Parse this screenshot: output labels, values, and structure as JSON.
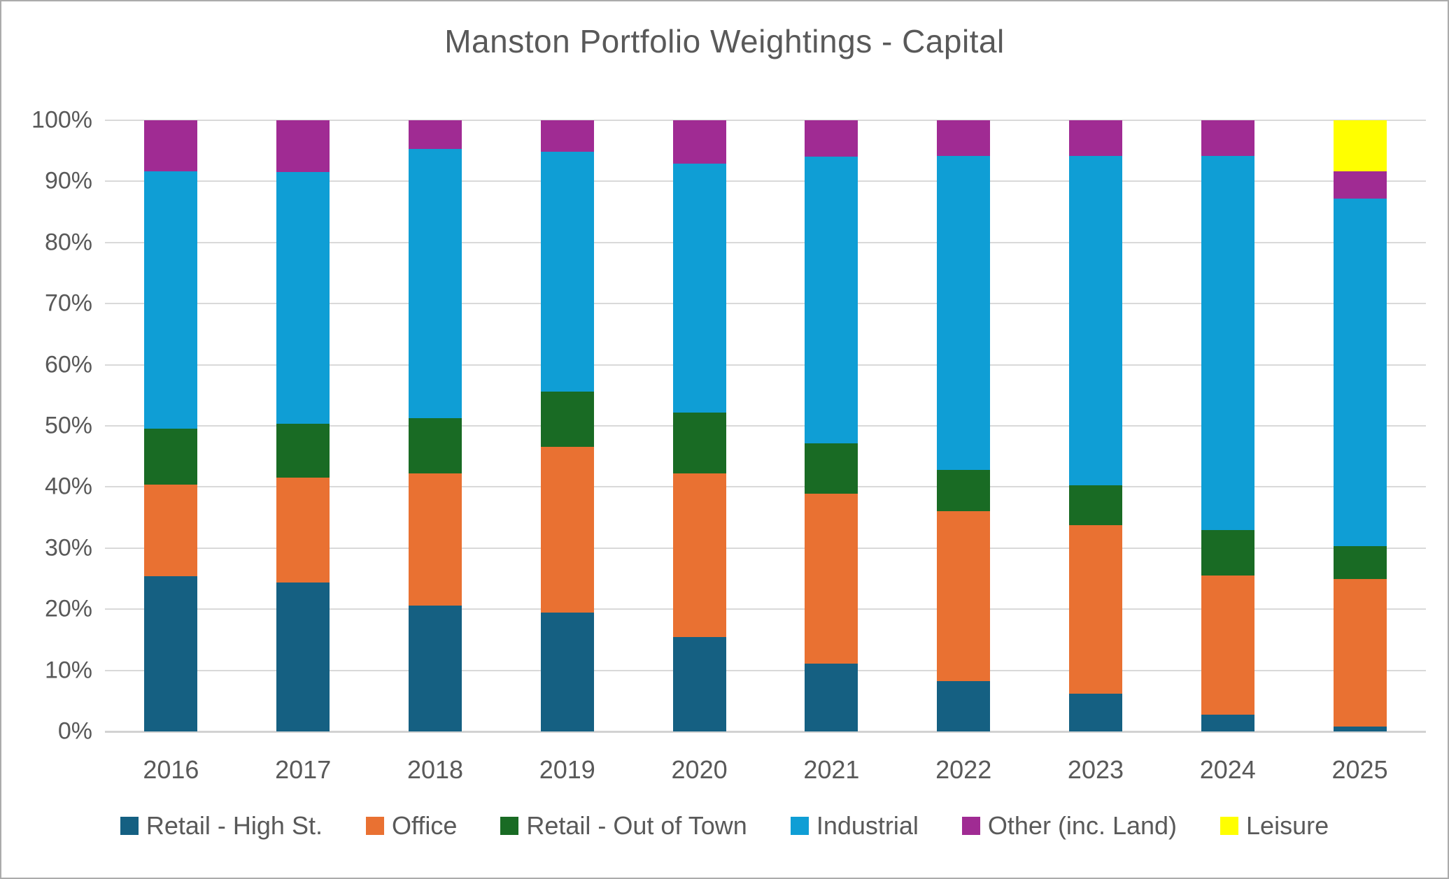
{
  "chart_data": {
    "type": "bar",
    "stacked": true,
    "normalized": "percent",
    "title": "Manston Portfolio Weightings - Capital",
    "categories": [
      "2016",
      "2017",
      "2018",
      "2019",
      "2020",
      "2021",
      "2022",
      "2023",
      "2024",
      "2025"
    ],
    "series": [
      {
        "name": "Retail - High St.",
        "color": "#156082",
        "values": [
          25.4,
          24.4,
          20.6,
          19.4,
          15.4,
          11.1,
          8.2,
          6.2,
          2.7,
          0.8
        ]
      },
      {
        "name": "Office",
        "color": "#E97132",
        "values": [
          15.0,
          17.1,
          21.6,
          27.2,
          26.8,
          27.8,
          27.8,
          27.6,
          22.8,
          24.1
        ]
      },
      {
        "name": "Retail - Out of Town",
        "color": "#196B24",
        "values": [
          9.2,
          8.8,
          9.1,
          9.0,
          10.0,
          8.2,
          6.8,
          6.5,
          7.4,
          5.4
        ]
      },
      {
        "name": "Industrial",
        "color": "#0F9ED5",
        "values": [
          42.0,
          41.2,
          44.0,
          39.3,
          40.7,
          47.0,
          51.4,
          53.9,
          61.3,
          56.9
        ]
      },
      {
        "name": "Other (inc. Land)",
        "color": "#A02B93",
        "values": [
          8.4,
          8.5,
          4.7,
          5.1,
          7.1,
          5.9,
          5.8,
          5.8,
          5.8,
          4.4
        ]
      },
      {
        "name": "Leisure",
        "color": "#FFFF00",
        "values": [
          0,
          0,
          0,
          0,
          0,
          0,
          0,
          0,
          0,
          8.4
        ]
      }
    ],
    "xlabel": "",
    "ylabel": "",
    "ylim": [
      0,
      100
    ],
    "y_ticks": [
      "100%",
      "90%",
      "80%",
      "70%",
      "60%",
      "50%",
      "40%",
      "30%",
      "20%",
      "10%",
      "0%"
    ],
    "grid": true,
    "legend_position": "bottom"
  },
  "colors": {
    "title_text": "#595959",
    "axis_text": "#595959",
    "gridline": "#D9D9D9",
    "frame_border": "#ABABAB",
    "background": "#FFFFFF"
  }
}
